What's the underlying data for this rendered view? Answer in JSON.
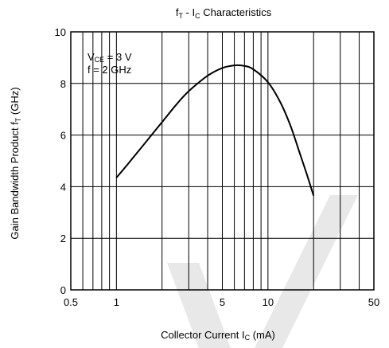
{
  "chart_data": {
    "type": "line",
    "title": {
      "main": "f",
      "sub": "T",
      "rest": " - I",
      "sub2": "C",
      "rest2": " Characteristics"
    },
    "xlabel": {
      "main": "Collector Current I",
      "sub": "C",
      "rest": " (mA)"
    },
    "ylabel": {
      "main": "Gain Bandwidth Product f",
      "sub": "T",
      "rest": " (GHz)"
    },
    "x_scale": "log",
    "xlim": [
      0.5,
      50
    ],
    "ylim": [
      0,
      10
    ],
    "x_ticks": [
      0.5,
      1,
      5,
      10,
      50
    ],
    "x_tick_labels": [
      "0.5",
      "1",
      "5",
      "10",
      "50"
    ],
    "y_ticks": [
      0,
      2,
      4,
      6,
      8,
      10
    ],
    "y_tick_labels": [
      "0",
      "2",
      "4",
      "6",
      "8",
      "10"
    ],
    "grid": true,
    "annotation": {
      "line1": {
        "pre": "V",
        "sub": "CE",
        "post": " = 3 V"
      },
      "line2": "f = 2 GHz"
    },
    "series": [
      {
        "x": [
          1.0,
          1.2,
          1.5,
          2.0,
          2.5,
          3.0,
          4.0,
          5.0,
          6.0,
          7.0,
          8.0,
          10.0,
          12.0,
          14.0,
          16.0,
          18.0,
          20.0
        ],
        "y": [
          4.35,
          4.9,
          5.6,
          6.5,
          7.2,
          7.7,
          8.3,
          8.6,
          8.7,
          8.68,
          8.55,
          8.05,
          7.3,
          6.4,
          5.4,
          4.5,
          3.65
        ]
      }
    ]
  },
  "colors": {
    "curve": "#000000",
    "grid": "#000000",
    "watermark": "#e8e8e8"
  }
}
